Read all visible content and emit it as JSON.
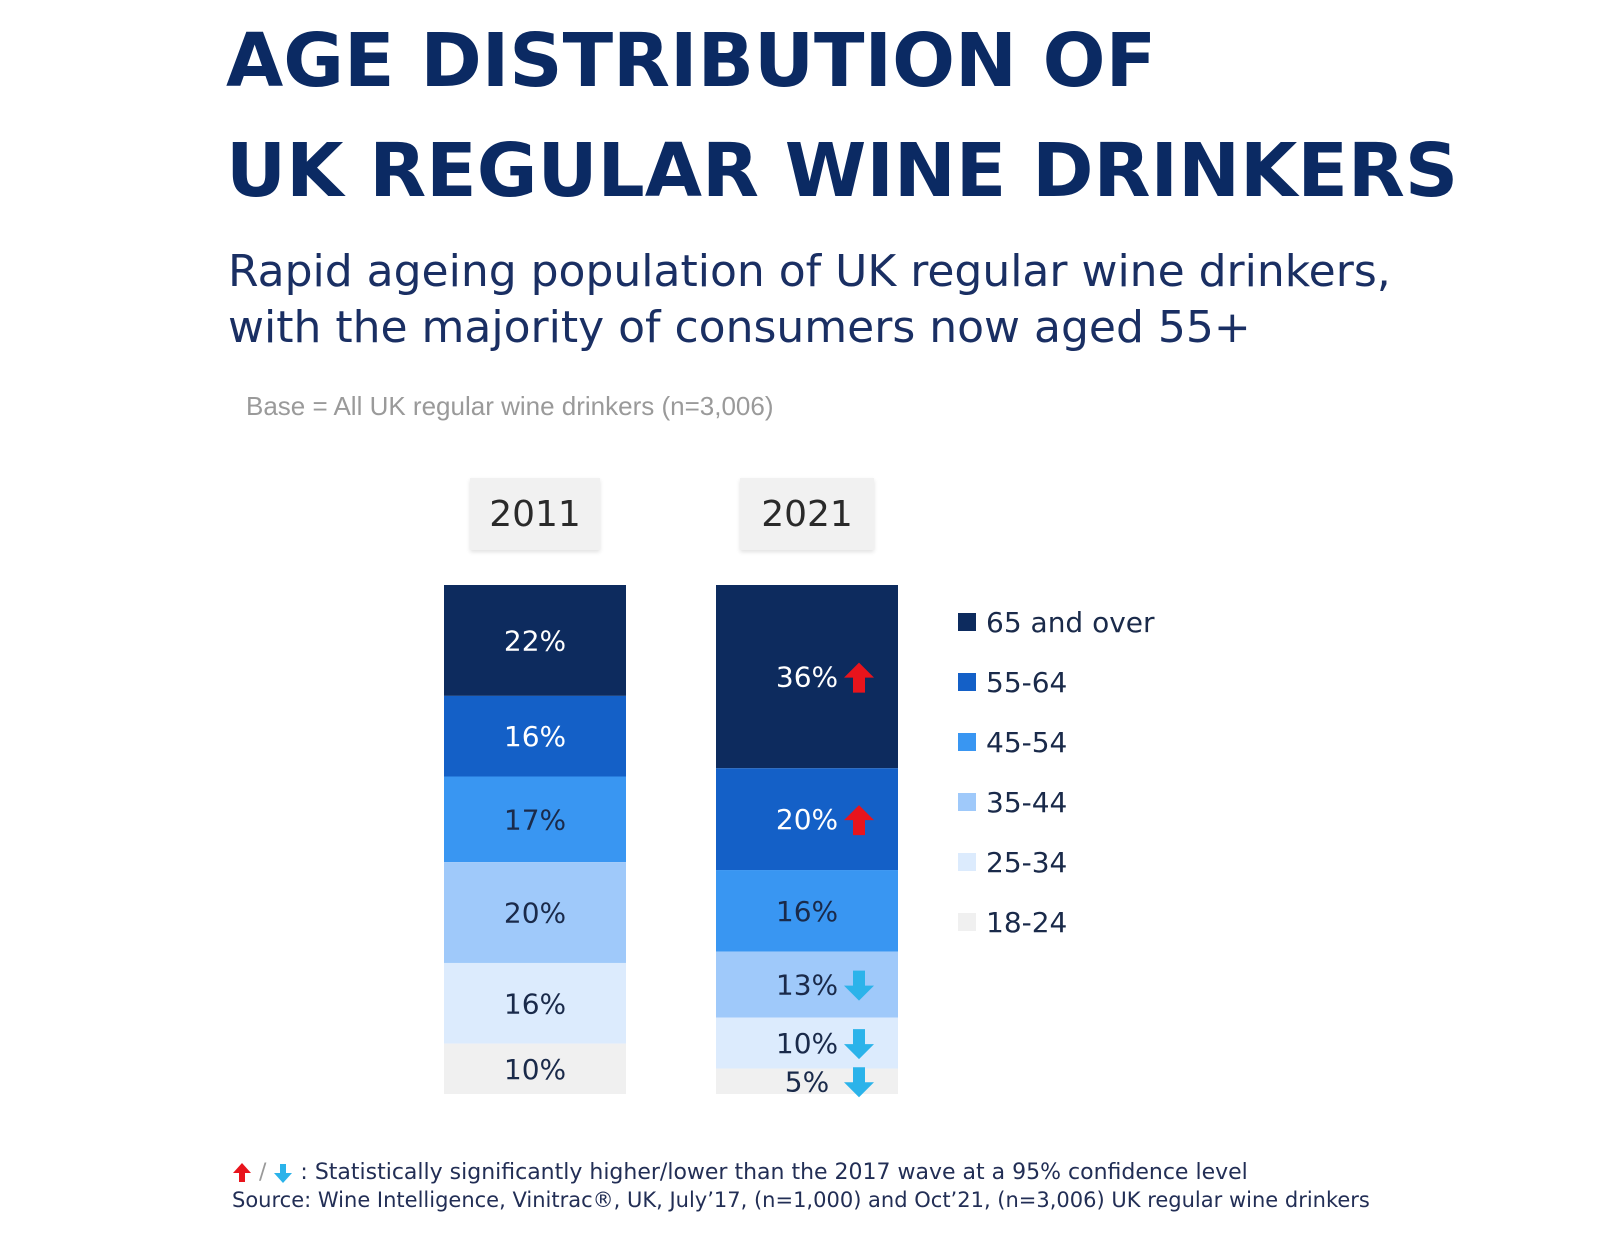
{
  "title_line1": "AGE DISTRIBUTION OF",
  "title_line2": "UK REGULAR WINE DRINKERS",
  "subtitle_line1": "Rapid ageing population of UK regular wine drinkers,",
  "subtitle_line2": "with the majority of consumers now aged 55+",
  "base_note": "Base = All UK regular wine drinkers (n=3,006)",
  "footer": {
    "separator": "/",
    "significance_note": ": Statistically significantly higher/lower than the 2017 wave at a 95% confidence level",
    "source": "Source: Wine Intelligence, Vinitrac®, UK, July’17, (n=1,000) and Oct’21, (n=3,006) UK regular wine drinkers"
  },
  "colors": {
    "title": "#0b2a63",
    "up_arrow": "#e8141c",
    "down_arrow": "#2bb3ea"
  },
  "chart_data": {
    "type": "bar",
    "stacked": true,
    "normalized_percent": true,
    "categories": [
      "2011",
      "2021"
    ],
    "series": [
      {
        "name": "65 and over",
        "color": "#0d2b5e",
        "label_color": "#ffffff",
        "values": [
          22,
          36
        ],
        "labels": [
          "22%",
          "36%"
        ],
        "significance": [
          null,
          "up"
        ]
      },
      {
        "name": "55-64",
        "color": "#1460c7",
        "label_color": "#ffffff",
        "values": [
          16,
          20
        ],
        "labels": [
          "16%",
          "20%"
        ],
        "significance": [
          null,
          "up"
        ]
      },
      {
        "name": "45-54",
        "color": "#3996f2",
        "label_color": "#1a2a4a",
        "values": [
          17,
          16
        ],
        "labels": [
          "17%",
          "16%"
        ],
        "significance": [
          null,
          null
        ]
      },
      {
        "name": "35-44",
        "color": "#9fc9fa",
        "label_color": "#1a2a4a",
        "values": [
          20,
          13
        ],
        "labels": [
          "20%",
          "13%"
        ],
        "significance": [
          null,
          "down"
        ]
      },
      {
        "name": "25-34",
        "color": "#dcebfd",
        "label_color": "#1a2a4a",
        "values": [
          16,
          10
        ],
        "labels": [
          "16%",
          "10%"
        ],
        "significance": [
          null,
          "down"
        ]
      },
      {
        "name": "18-24",
        "color": "#f0f0f0",
        "label_color": "#1a2a4a",
        "values": [
          10,
          5
        ],
        "labels": [
          "10%",
          "5%"
        ],
        "significance": [
          null,
          "down"
        ]
      }
    ],
    "legend_position": "right",
    "grid": false
  }
}
